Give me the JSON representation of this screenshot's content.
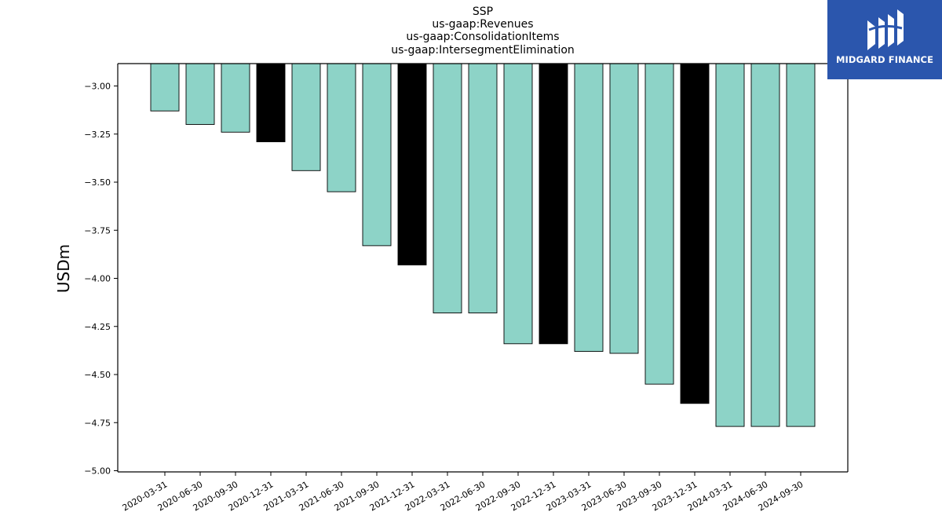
{
  "chart_data": {
    "type": "bar",
    "title": [
      "SSP",
      "us-gaap:Revenues",
      "us-gaap:ConsolidationItems",
      "us-gaap:IntersegmentElimination"
    ],
    "xlabel": "",
    "ylabel": "USDm",
    "ylim": [
      -5.0,
      -2.88
    ],
    "yticks": [
      -3.0,
      -3.25,
      -3.5,
      -3.75,
      -4.0,
      -4.25,
      -4.5,
      -4.75,
      -5.0
    ],
    "ytick_labels": [
      "−3.00",
      "−3.25",
      "−3.50",
      "−3.75",
      "−4.00",
      "−4.25",
      "−4.50",
      "−4.75",
      "−5.00"
    ],
    "grid": false,
    "categories": [
      "2020-03-31",
      "2020-06-30",
      "2020-09-30",
      "2020-12-31",
      "2021-03-31",
      "2021-06-30",
      "2021-09-30",
      "2021-12-31",
      "2022-03-31",
      "2022-06-30",
      "2022-09-30",
      "2022-12-31",
      "2023-03-31",
      "2023-06-30",
      "2023-09-30",
      "2023-12-31",
      "2024-03-31",
      "2024-06-30",
      "2024-09-30"
    ],
    "values": [
      -3.13,
      -3.2,
      -3.24,
      -3.29,
      -3.44,
      -3.55,
      -3.83,
      -3.93,
      -4.18,
      -4.18,
      -4.34,
      -4.34,
      -4.38,
      -4.39,
      -4.55,
      -4.65,
      -4.77,
      -4.77,
      -4.77
    ],
    "bar_colors": [
      "#8dd3c7",
      "#8dd3c7",
      "#8dd3c7",
      "#000000",
      "#8dd3c7",
      "#8dd3c7",
      "#8dd3c7",
      "#000000",
      "#8dd3c7",
      "#8dd3c7",
      "#8dd3c7",
      "#000000",
      "#8dd3c7",
      "#8dd3c7",
      "#8dd3c7",
      "#000000",
      "#8dd3c7",
      "#8dd3c7",
      "#8dd3c7"
    ],
    "bar_edge_color": "#000000"
  },
  "logo": {
    "text": "MIDGARD FINANCE",
    "background": "#2b56ad",
    "icon": "midgard-logo-icon"
  }
}
